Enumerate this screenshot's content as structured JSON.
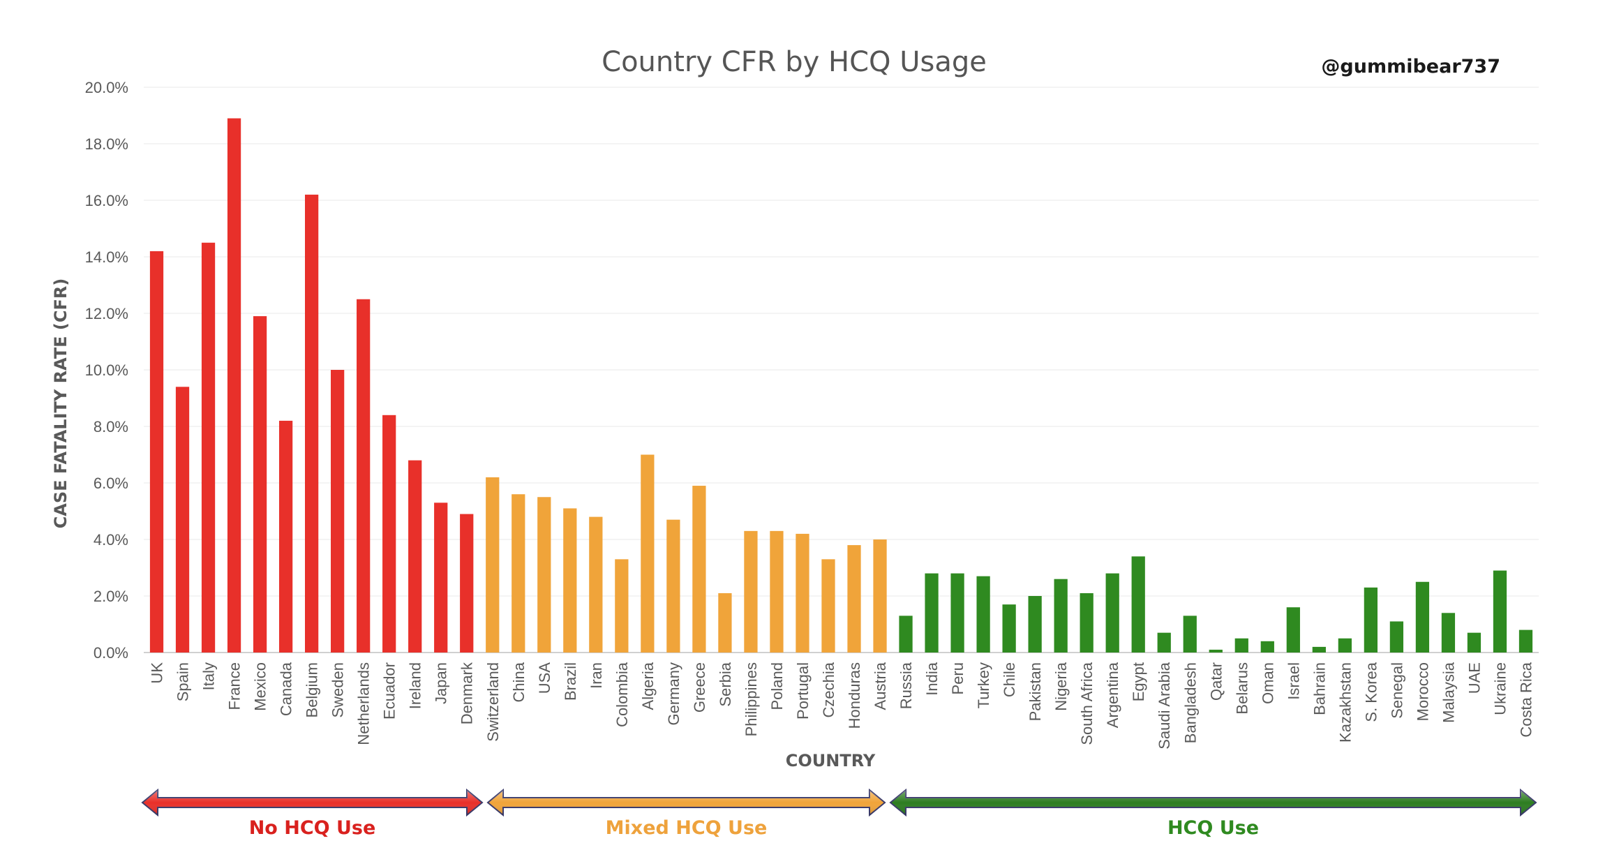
{
  "chart_data": {
    "type": "bar",
    "title": "Country CFR by HCQ Usage",
    "credit": "@gummibear737",
    "xlabel": "COUNTRY",
    "ylabel": "CASE FATALITY RATE (CFR)",
    "ylim": [
      0,
      20
    ],
    "y_ticks": [
      "0.0%",
      "2.0%",
      "4.0%",
      "6.0%",
      "8.0%",
      "10.0%",
      "12.0%",
      "14.0%",
      "16.0%",
      "18.0%",
      "20.0%"
    ],
    "grid": true,
    "categories": [
      "UK",
      "Spain",
      "Italy",
      "France",
      "Mexico",
      "Canada",
      "Belgium",
      "Sweden",
      "Netherlands",
      "Ecuador",
      "Ireland",
      "Japan",
      "Denmark",
      "Switzerland",
      "China",
      "USA",
      "Brazil",
      "Iran",
      "Colombia",
      "Algeria",
      "Germany",
      "Greece",
      "Serbia",
      "Philippines",
      "Poland",
      "Portugal",
      "Czechia",
      "Honduras",
      "Austria",
      "Russia",
      "India",
      "Peru",
      "Turkey",
      "Chile",
      "Pakistan",
      "Nigeria",
      "South Africa",
      "Argentina",
      "Egypt",
      "Saudi Arabia",
      "Bangladesh",
      "Qatar",
      "Belarus",
      "Oman",
      "Israel",
      "Bahrain",
      "Kazakhstan",
      "S. Korea",
      "Senegal",
      "Morocco",
      "Malaysia",
      "UAE",
      "Ukraine",
      "Costa Rica"
    ],
    "values": [
      14.2,
      9.4,
      14.5,
      18.9,
      11.9,
      8.2,
      16.2,
      10.0,
      12.5,
      8.4,
      6.8,
      5.3,
      4.9,
      6.2,
      5.6,
      5.5,
      5.1,
      4.8,
      3.3,
      7.0,
      4.7,
      5.9,
      2.1,
      4.3,
      4.3,
      4.2,
      3.3,
      3.8,
      4.0,
      1.3,
      2.8,
      2.8,
      2.7,
      1.7,
      2.0,
      2.6,
      2.1,
      2.8,
      3.4,
      0.7,
      1.3,
      0.1,
      0.5,
      0.4,
      1.6,
      0.2,
      0.5,
      2.3,
      1.1,
      2.5,
      1.4,
      0.7,
      2.9,
      0.8
    ],
    "groups": [
      {
        "name": "No HCQ Use",
        "start": 0,
        "end": 12,
        "color": "#e8302a",
        "text_color": "#d9211e",
        "arrow_color": "#e8302a"
      },
      {
        "name": "Mixed HCQ Use",
        "start": 13,
        "end": 28,
        "color": "#f0a43a",
        "text_color": "#eea23c",
        "arrow_color": "#f0a43a"
      },
      {
        "name": "HCQ Use",
        "start": 29,
        "end": 53,
        "color": "#2f8a20",
        "text_color": "#2f8a20",
        "arrow_color": "#2e7d22"
      }
    ]
  }
}
